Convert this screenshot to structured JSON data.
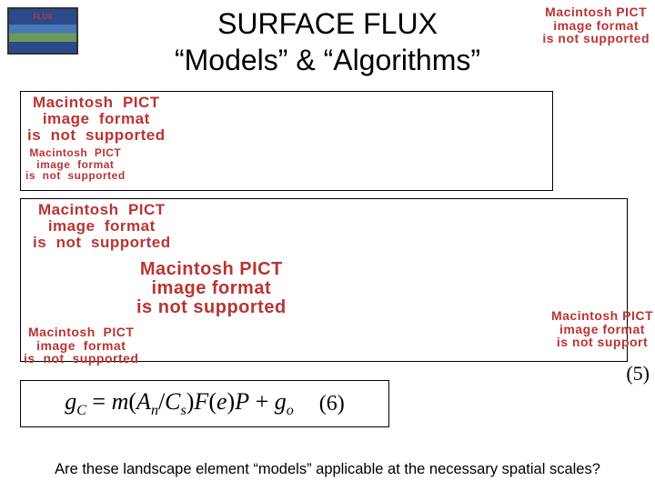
{
  "logo": {
    "label": "FLUX"
  },
  "title": {
    "line1": "SURFACE FLUX",
    "line2": "“Models” & “Algorithms”"
  },
  "pict_error": {
    "l1": "Macintosh PICT",
    "l2": "image format",
    "l3": "is not supported",
    "alt_l1": "Macintosh  PICT",
    "alt_l2": "image  format",
    "alt_l3": "is  not  supported",
    "short_l3": "is not support"
  },
  "labels": {
    "eq5": "(5)",
    "eq6": "(6)"
  },
  "equation6": {
    "lhs_g": "g",
    "lhs_sub": "C",
    "eq": " = ",
    "m": "m",
    "lp": "(",
    "A": "A",
    "Asub": "n",
    "slash": "/",
    "C": "C",
    "Csub": "s",
    "rp": ")",
    "F": "F",
    "lp2": "(",
    "e": "e",
    "rp2": ")",
    "P": "P",
    "plus": " + ",
    "g2": "g",
    "g2sub": "o"
  },
  "footer": "Are these landscape element “models” applicable at the necessary spatial scales?"
}
